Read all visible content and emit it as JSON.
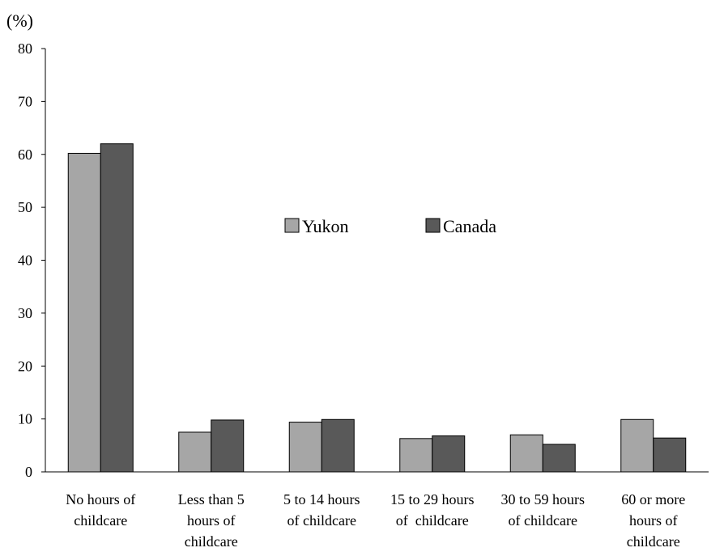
{
  "chart_data": {
    "type": "bar",
    "title": "",
    "ylabel": "(%)",
    "xlabel": "",
    "ylim": [
      0,
      80
    ],
    "yticks": [
      0,
      10,
      20,
      30,
      40,
      50,
      60,
      70,
      80
    ],
    "grid": false,
    "legend_position": "center",
    "categories": [
      [
        "No hours of",
        "childcare"
      ],
      [
        "Less than 5",
        "hours of",
        "childcare"
      ],
      [
        "5 to 14 hours",
        "of childcare"
      ],
      [
        "15 to 29 hours",
        "of  childcare"
      ],
      [
        "30 to 59 hours",
        "of childcare"
      ],
      [
        "60 or more",
        "hours of",
        "childcare"
      ]
    ],
    "series": [
      {
        "name": "Yukon",
        "color": "#a6a6a6",
        "values": [
          60.2,
          7.5,
          9.4,
          6.3,
          7.0,
          9.9
        ]
      },
      {
        "name": "Canada",
        "color": "#595959",
        "values": [
          62.0,
          9.8,
          9.9,
          6.8,
          5.2,
          6.4
        ]
      }
    ]
  }
}
